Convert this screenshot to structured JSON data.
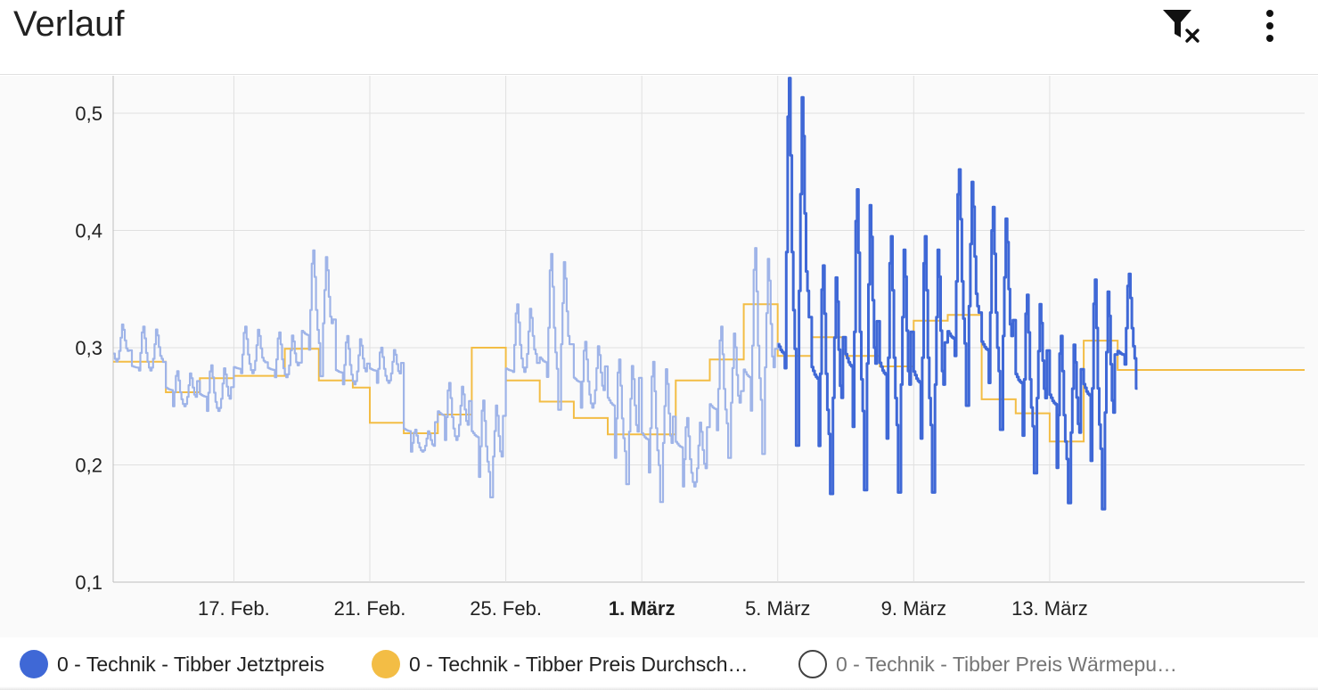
{
  "header": {
    "title": "Verlauf",
    "icons": [
      "filter-remove-icon",
      "more-vert-icon"
    ]
  },
  "legend": [
    {
      "label": "0 - Technik - Tibber Jetztpreis",
      "color": "#3f68d6",
      "visible": true
    },
    {
      "label": "0 - Technik - Tibber Preis Durchsch…",
      "color": "#f3bd45",
      "visible": true
    },
    {
      "label": "0 - Technik - Tibber Preis Wärmepu…",
      "color": "#ffffff",
      "visible": false
    }
  ],
  "chart_data": {
    "type": "line",
    "y_ticks": [
      "0,1",
      "0,2",
      "0,3",
      "0,4",
      "0,5"
    ],
    "x_ticks": [
      {
        "label": "17. Feb.",
        "day": 17,
        "bold": false
      },
      {
        "label": "21. Feb.",
        "day": 21,
        "bold": false
      },
      {
        "label": "25. Feb.",
        "day": 25,
        "bold": false
      },
      {
        "label": "1. März",
        "day": 29,
        "bold": true
      },
      {
        "label": "5. März",
        "day": 33,
        "bold": false
      },
      {
        "label": "9. März",
        "day": 37,
        "bold": false
      },
      {
        "label": "13. März",
        "day": 41,
        "bold": false
      }
    ],
    "xlim_days": [
      13.45,
      48.5
    ],
    "ylim": [
      0.1,
      0.53
    ],
    "grid": true,
    "faded_before_day": 33.05,
    "series": [
      {
        "name": "0 - Technik - Tibber Jetztpreis",
        "color": "#3f68d6",
        "daily": [
          {
            "day": 13.45,
            "min": 0.277,
            "max": 0.322,
            "night_max": 0.3
          },
          {
            "day": 14,
            "min": 0.268,
            "max": 0.318,
            "night_max": 0.29
          },
          {
            "day": 15,
            "min": 0.24,
            "max": 0.28,
            "night_max": 0.275
          },
          {
            "day": 16,
            "min": 0.233,
            "max": 0.285,
            "night_max": 0.27
          },
          {
            "day": 17,
            "min": 0.265,
            "max": 0.318,
            "night_max": 0.29
          },
          {
            "day": 18,
            "min": 0.262,
            "max": 0.313,
            "night_max": 0.29
          },
          {
            "day": 19,
            "min": 0.27,
            "max": 0.383,
            "night_max": 0.33
          },
          {
            "day": 20,
            "min": 0.255,
            "max": 0.31,
            "night_max": 0.29
          },
          {
            "day": 21,
            "min": 0.26,
            "max": 0.3,
            "night_max": 0.29
          },
          {
            "day": 22,
            "min": 0.205,
            "max": 0.23,
            "night_max": 0.24
          },
          {
            "day": 23,
            "min": 0.205,
            "max": 0.27,
            "night_max": 0.26
          },
          {
            "day": 24,
            "min": 0.168,
            "max": 0.255,
            "night_max": 0.25
          },
          {
            "day": 25,
            "min": 0.26,
            "max": 0.337,
            "night_max": 0.29
          },
          {
            "day": 26,
            "min": 0.24,
            "max": 0.38,
            "night_max": 0.31
          },
          {
            "day": 27,
            "min": 0.23,
            "max": 0.305,
            "night_max": 0.29
          },
          {
            "day": 28,
            "min": 0.178,
            "max": 0.29,
            "night_max": 0.285
          },
          {
            "day": 29,
            "min": 0.162,
            "max": 0.288,
            "night_max": 0.25
          },
          {
            "day": 30,
            "min": 0.162,
            "max": 0.24,
            "night_max": 0.24
          },
          {
            "day": 31,
            "min": 0.2,
            "max": 0.318,
            "night_max": 0.27
          },
          {
            "day": 32,
            "min": 0.2,
            "max": 0.385,
            "night_max": 0.31
          },
          {
            "day": 33,
            "min": 0.2,
            "max": 0.53,
            "night_max": 0.34
          },
          {
            "day": 34,
            "min": 0.165,
            "max": 0.37,
            "night_max": 0.325
          },
          {
            "day": 35,
            "min": 0.165,
            "max": 0.435,
            "night_max": 0.34
          },
          {
            "day": 36,
            "min": 0.165,
            "max": 0.395,
            "night_max": 0.33
          },
          {
            "day": 37,
            "min": 0.165,
            "max": 0.395,
            "night_max": 0.32
          },
          {
            "day": 38,
            "min": 0.24,
            "max": 0.452,
            "night_max": 0.34
          },
          {
            "day": 39,
            "min": 0.22,
            "max": 0.42,
            "night_max": 0.335
          },
          {
            "day": 40,
            "min": 0.185,
            "max": 0.345,
            "night_max": 0.31
          },
          {
            "day": 41,
            "min": 0.16,
            "max": 0.31,
            "night_max": 0.295
          },
          {
            "day": 42,
            "min": 0.152,
            "max": 0.358,
            "night_max": 0.31
          },
          {
            "day": 43,
            "min": 0.26,
            "max": 0.363,
            "night_max": 0.31
          }
        ]
      },
      {
        "name": "0 - Technik - Tibber Preis Durchsch…",
        "color": "#f3bd45",
        "steps": [
          {
            "day": 13.45,
            "value": 0.288
          },
          {
            "day": 15,
            "value": 0.262
          },
          {
            "day": 16,
            "value": 0.274
          },
          {
            "day": 17,
            "value": 0.276
          },
          {
            "day": 18.5,
            "value": 0.299
          },
          {
            "day": 19.5,
            "value": 0.272
          },
          {
            "day": 20.5,
            "value": 0.266
          },
          {
            "day": 21,
            "value": 0.236
          },
          {
            "day": 22,
            "value": 0.227
          },
          {
            "day": 23,
            "value": 0.243
          },
          {
            "day": 24,
            "value": 0.3
          },
          {
            "day": 25,
            "value": 0.272
          },
          {
            "day": 26,
            "value": 0.254
          },
          {
            "day": 27,
            "value": 0.24
          },
          {
            "day": 28,
            "value": 0.226
          },
          {
            "day": 29.5,
            "value": 0.226
          },
          {
            "day": 30,
            "value": 0.272
          },
          {
            "day": 31,
            "value": 0.29
          },
          {
            "day": 32,
            "value": 0.337
          },
          {
            "day": 33,
            "value": 0.293
          },
          {
            "day": 34,
            "value": 0.309
          },
          {
            "day": 35,
            "value": 0.293
          },
          {
            "day": 36,
            "value": 0.284
          },
          {
            "day": 37,
            "value": 0.323
          },
          {
            "day": 38,
            "value": 0.328
          },
          {
            "day": 39,
            "value": 0.256
          },
          {
            "day": 40,
            "value": 0.244
          },
          {
            "day": 41,
            "value": 0.22
          },
          {
            "day": 42,
            "value": 0.306
          },
          {
            "day": 43,
            "value": 0.281
          },
          {
            "day": 48.5,
            "value": 0.281
          }
        ]
      }
    ]
  }
}
